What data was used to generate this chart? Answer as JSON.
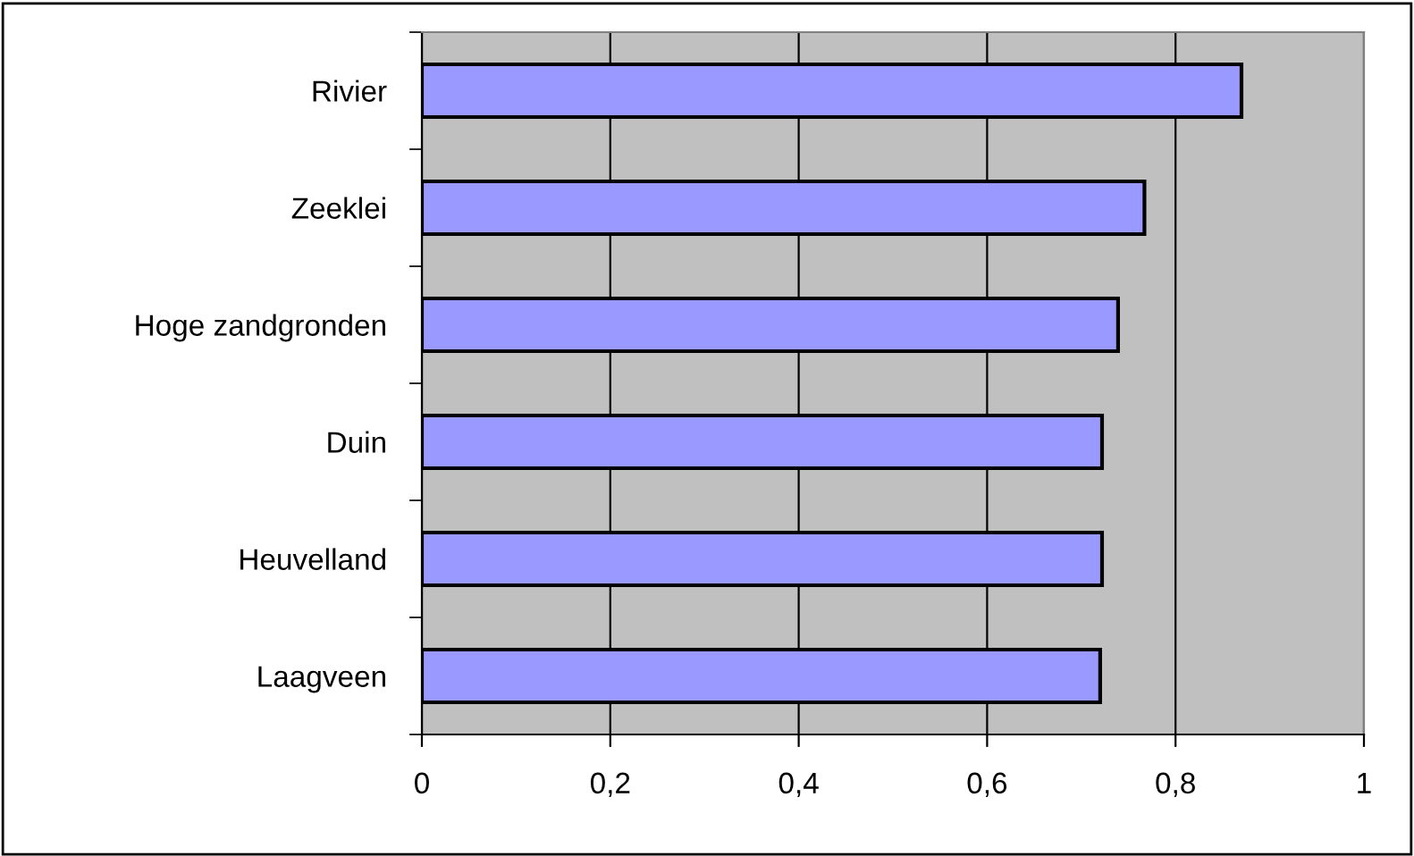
{
  "chart_data": {
    "type": "bar",
    "orientation": "horizontal",
    "categories": [
      "Rivier",
      "Zeeklei",
      "Hoge zandgronden",
      "Duin",
      "Heuvelland",
      "Laagveen"
    ],
    "values": [
      0.87,
      0.767,
      0.739,
      0.722,
      0.722,
      0.72
    ],
    "color": "#9999ff",
    "xlim": [
      0,
      1
    ],
    "xticks": [
      {
        "value": 0,
        "label": "0"
      },
      {
        "value": 0.2,
        "label": "0,2"
      },
      {
        "value": 0.4,
        "label": "0,4"
      },
      {
        "value": 0.6,
        "label": "0,6"
      },
      {
        "value": 0.8,
        "label": "0,8"
      },
      {
        "value": 1,
        "label": "1"
      }
    ],
    "grid": "x",
    "legend": false
  }
}
